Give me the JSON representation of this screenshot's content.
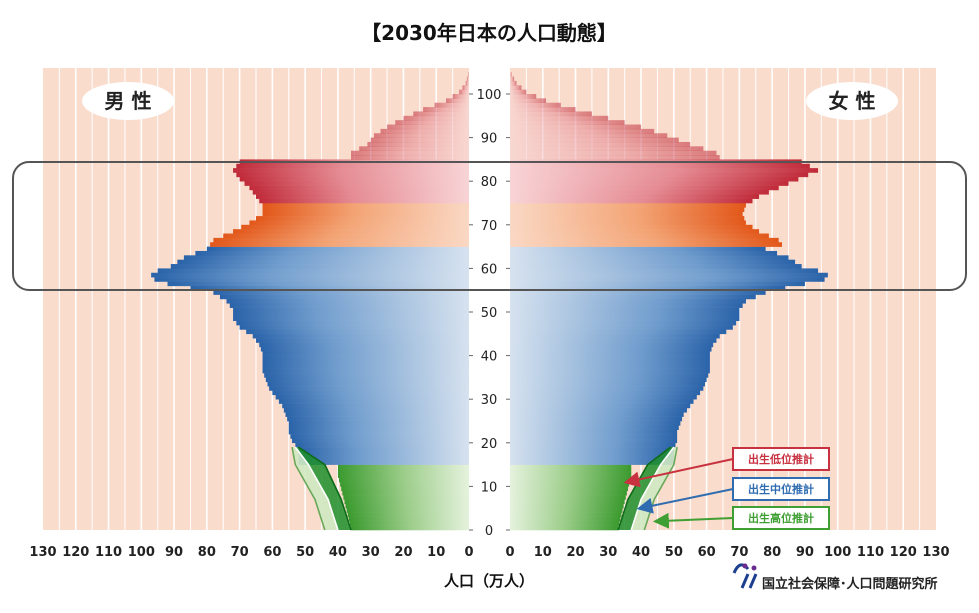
{
  "chart_data": {
    "type": "bar",
    "title": "【2030年日本の人口動態】",
    "xlabel": "人口（万人）",
    "x_ticks": [
      130,
      120,
      110,
      100,
      90,
      80,
      70,
      60,
      50,
      40,
      30,
      20,
      10,
      0
    ],
    "age_ticks": [
      100,
      90,
      80,
      70,
      60,
      50,
      40,
      30,
      20,
      10,
      0
    ],
    "xlim": [
      0,
      130
    ],
    "ylim": [
      0,
      105
    ],
    "male_label": "男 性",
    "female_label": "女 性",
    "age_bands": [
      {
        "from": 0,
        "to": 15,
        "color": "#3f9f32"
      },
      {
        "from": 15,
        "to": 65,
        "color": "#2f6db0"
      },
      {
        "from": 65,
        "to": 75,
        "color": "#e2601f"
      },
      {
        "from": 75,
        "to": 85,
        "color": "#c8313f"
      },
      {
        "from": 85,
        "to": 106,
        "color": "#c8313f"
      }
    ],
    "male_profile": [
      [
        0,
        36
      ],
      [
        3,
        37
      ],
      [
        6,
        38
      ],
      [
        9,
        39
      ],
      [
        12,
        40
      ],
      [
        14,
        40
      ],
      [
        15,
        52
      ],
      [
        18,
        52
      ],
      [
        20,
        54
      ],
      [
        22,
        55
      ],
      [
        24,
        55
      ],
      [
        26,
        56
      ],
      [
        28,
        57
      ],
      [
        30,
        59
      ],
      [
        32,
        61
      ],
      [
        34,
        62
      ],
      [
        36,
        63
      ],
      [
        38,
        63
      ],
      [
        40,
        63
      ],
      [
        42,
        64
      ],
      [
        44,
        66
      ],
      [
        46,
        70
      ],
      [
        48,
        72
      ],
      [
        50,
        72
      ],
      [
        52,
        74
      ],
      [
        54,
        78
      ],
      [
        56,
        92
      ],
      [
        57,
        96
      ],
      [
        58,
        97
      ],
      [
        59,
        95
      ],
      [
        60,
        91
      ],
      [
        62,
        87
      ],
      [
        64,
        80
      ],
      [
        65,
        79
      ],
      [
        66,
        78
      ],
      [
        68,
        72
      ],
      [
        70,
        67
      ],
      [
        72,
        63
      ],
      [
        74,
        63
      ],
      [
        76,
        65
      ],
      [
        78,
        67
      ],
      [
        80,
        70
      ],
      [
        82,
        72
      ],
      [
        84,
        70
      ],
      [
        85,
        36
      ],
      [
        86,
        36
      ],
      [
        88,
        31
      ],
      [
        90,
        29
      ],
      [
        92,
        25
      ],
      [
        94,
        20
      ],
      [
        96,
        14
      ],
      [
        98,
        7
      ],
      [
        100,
        3
      ],
      [
        102,
        1
      ],
      [
        104,
        0.3
      ],
      [
        105,
        0
      ]
    ],
    "female_profile": [
      [
        0,
        33
      ],
      [
        3,
        34
      ],
      [
        6,
        35
      ],
      [
        9,
        36
      ],
      [
        12,
        37
      ],
      [
        14,
        37
      ],
      [
        15,
        50
      ],
      [
        18,
        50
      ],
      [
        20,
        51
      ],
      [
        22,
        51
      ],
      [
        24,
        52
      ],
      [
        26,
        53
      ],
      [
        28,
        55
      ],
      [
        30,
        57
      ],
      [
        32,
        59
      ],
      [
        34,
        60
      ],
      [
        36,
        61
      ],
      [
        38,
        61
      ],
      [
        40,
        61
      ],
      [
        42,
        62
      ],
      [
        44,
        64
      ],
      [
        46,
        68
      ],
      [
        48,
        70
      ],
      [
        50,
        70
      ],
      [
        52,
        72
      ],
      [
        54,
        78
      ],
      [
        56,
        90
      ],
      [
        57,
        96
      ],
      [
        58,
        97
      ],
      [
        59,
        94
      ],
      [
        60,
        89
      ],
      [
        62,
        85
      ],
      [
        64,
        78
      ],
      [
        65,
        83
      ],
      [
        66,
        82
      ],
      [
        68,
        76
      ],
      [
        70,
        72
      ],
      [
        72,
        71
      ],
      [
        74,
        72
      ],
      [
        76,
        76
      ],
      [
        78,
        82
      ],
      [
        80,
        88
      ],
      [
        82,
        94
      ],
      [
        84,
        89
      ],
      [
        85,
        64
      ],
      [
        86,
        63
      ],
      [
        88,
        55
      ],
      [
        90,
        48
      ],
      [
        92,
        40
      ],
      [
        94,
        30
      ],
      [
        96,
        20
      ],
      [
        98,
        11
      ],
      [
        100,
        5
      ],
      [
        102,
        2
      ],
      [
        104,
        0.5
      ],
      [
        105,
        0
      ]
    ],
    "projection_fan": {
      "male": [
        {
          "age": 0,
          "low": 36,
          "mid": 40,
          "high": 44
        },
        {
          "age": 7,
          "low": 39,
          "mid": 43,
          "high": 47
        },
        {
          "age": 15,
          "low": 44,
          "mid": 49,
          "high": 53
        },
        {
          "age": 19,
          "low": 52,
          "mid": 53,
          "high": 54
        }
      ],
      "female": [
        {
          "age": 0,
          "low": 33,
          "mid": 37,
          "high": 41
        },
        {
          "age": 7,
          "low": 36,
          "mid": 40,
          "high": 44
        },
        {
          "age": 15,
          "low": 42,
          "mid": 46,
          "high": 50
        },
        {
          "age": 19,
          "low": 49,
          "mid": 50,
          "high": 51
        }
      ]
    },
    "legend": [
      {
        "label": "出生低位推計",
        "color": "#c8313f",
        "target_age": 11,
        "target_value": 34
      },
      {
        "label": "出生中位推計",
        "color": "#2f6db0",
        "target_age": 5,
        "target_value": 38
      },
      {
        "label": "出生高位推計",
        "color": "#3f9f32",
        "target_age": 2,
        "target_value": 43
      }
    ],
    "highlight_age_range": [
      56,
      85
    ],
    "background_color": "#f9dccc",
    "grid": true
  },
  "footer": {
    "institution": "国立社会保障･人口問題研究所",
    "logo_text": "ⅲ"
  }
}
